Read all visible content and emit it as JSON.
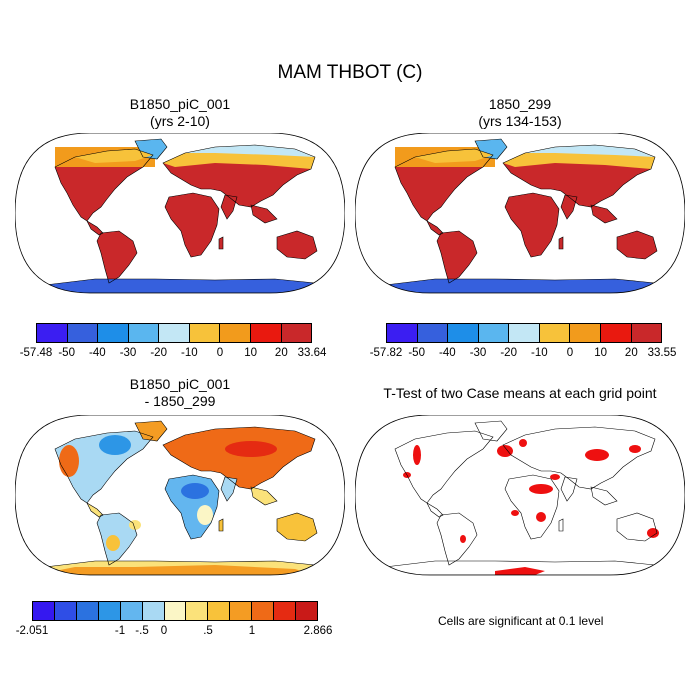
{
  "figure": {
    "title": "MAM THBOT (C)",
    "panels": [
      {
        "title_line1": "B1850_piC_001",
        "title_line2": "(yrs 2-10)"
      },
      {
        "title_line1": "1850_299",
        "title_line2": "(yrs 134-153)"
      },
      {
        "title_line1": "B1850_piC_001",
        "title_line2": "- 1850_299"
      },
      {
        "title_line1": "T-Test of two Case means at each grid point"
      }
    ],
    "note": "Cells are significant at 0.1 level"
  },
  "colorbars": {
    "left_top": {
      "ticks": [
        "-57.48",
        "-50",
        "-40",
        "-30",
        "-20",
        "-10",
        "0",
        "10",
        "20",
        "33.64"
      ],
      "colors": [
        "#3b1ef2",
        "#3660dd",
        "#1e8ee8",
        "#5ab6ef",
        "#c3e7f5",
        "#f7c23a",
        "#f29b1c",
        "#e9190f",
        "#c9282a"
      ]
    },
    "right_top": {
      "ticks": [
        "-57.82",
        "-50",
        "-40",
        "-30",
        "-20",
        "-10",
        "0",
        "10",
        "20",
        "33.55"
      ],
      "colors": [
        "#3b1ef2",
        "#3660dd",
        "#1e8ee8",
        "#5ab6ef",
        "#c3e7f5",
        "#f7c23a",
        "#f29b1c",
        "#e9190f",
        "#c9282a"
      ]
    },
    "diff": {
      "ticks": [
        "-2.051",
        "-1",
        "-.5",
        "0",
        ".5",
        "1",
        "2.866"
      ],
      "colors": [
        "#3518f0",
        "#2f4ee6",
        "#2b72e0",
        "#2d96e6",
        "#63b6ef",
        "#a9d9f3",
        "#fbf6c6",
        "#fbe27a",
        "#f8c23a",
        "#f49c23",
        "#ef6a17",
        "#e52b12",
        "#c91a18"
      ]
    }
  }
}
